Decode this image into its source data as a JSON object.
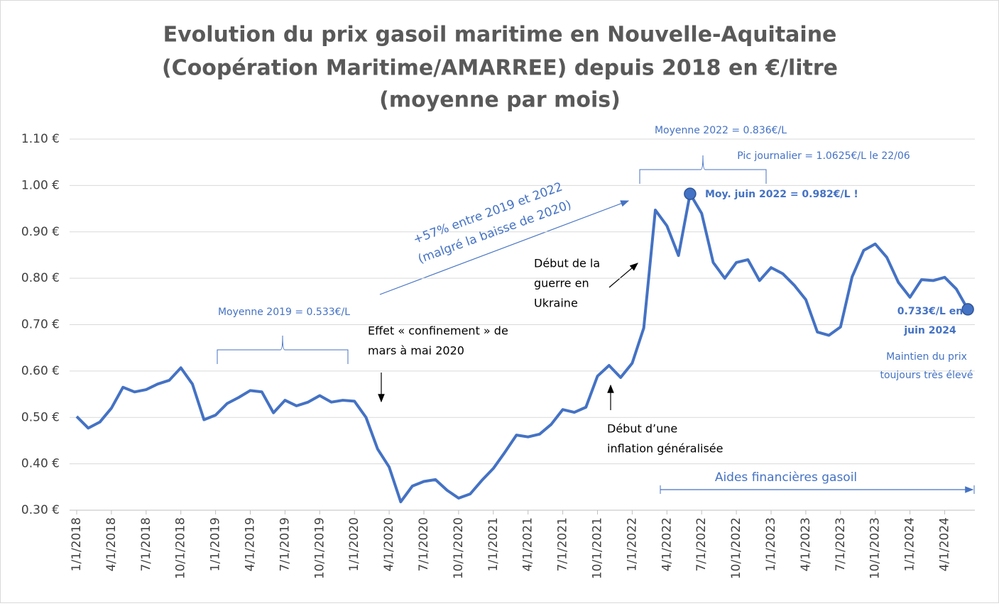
{
  "chart_data": {
    "type": "line",
    "title": "Evolution du prix gasoil maritime en Nouvelle-Aquitaine",
    "subtitle": [
      "(Coopération Maritime/AMARREE) depuis 2018 en €/litre",
      "(moyenne par mois)"
    ],
    "categories": [
      "1/1/2018",
      null,
      null,
      "4/1/2018",
      null,
      null,
      "7/1/2018",
      null,
      null,
      "10/1/2018",
      null,
      null,
      "1/1/2019",
      null,
      null,
      "4/1/2019",
      null,
      null,
      "7/1/2019",
      null,
      null,
      "10/1/2019",
      null,
      null,
      "1/1/2020",
      null,
      null,
      "4/1/2020",
      null,
      null,
      "7/1/2020",
      null,
      null,
      "10/1/2020",
      null,
      null,
      "1/1/2021",
      null,
      null,
      "4/1/2021",
      null,
      null,
      "7/1/2021",
      null,
      null,
      "10/1/2021",
      null,
      null,
      "1/1/2022",
      null,
      null,
      "4/1/2022",
      null,
      null,
      "7/1/2022",
      null,
      null,
      "10/1/2022",
      null,
      null,
      "1/1/2023",
      null,
      null,
      "4/1/2023",
      null,
      null,
      "7/1/2023",
      null,
      null,
      "10/1/2023",
      null,
      null,
      "1/1/2024",
      null,
      null,
      "4/1/2024",
      null,
      null
    ],
    "series": [
      {
        "color": "#4472c4",
        "values": [
          0.502,
          0.477,
          0.49,
          0.52,
          0.565,
          0.555,
          0.56,
          0.572,
          0.58,
          0.607,
          0.572,
          0.495,
          0.505,
          0.53,
          0.543,
          0.558,
          0.555,
          0.51,
          0.537,
          0.525,
          0.533,
          0.547,
          0.533,
          0.537,
          0.535,
          0.5,
          0.432,
          0.393,
          0.318,
          0.352,
          0.362,
          0.366,
          0.343,
          0.326,
          0.335,
          0.364,
          0.39,
          0.425,
          0.462,
          0.458,
          0.464,
          0.485,
          0.517,
          0.511,
          0.522,
          0.589,
          0.612,
          0.586,
          0.617,
          0.693,
          0.947,
          0.913,
          0.849,
          0.982,
          0.94,
          0.834,
          0.8,
          0.834,
          0.84,
          0.795,
          0.823,
          0.81,
          0.785,
          0.754,
          0.684,
          0.677,
          0.695,
          0.803,
          0.86,
          0.874,
          0.845,
          0.791,
          0.759,
          0.797,
          0.795,
          0.802,
          0.777,
          0.733
        ]
      }
    ],
    "highlight_points": [
      53,
      77
    ],
    "ylim": [
      0.3,
      1.1
    ],
    "yticks": [
      {
        "value": 0.3,
        "label": "0.30 €"
      },
      {
        "value": 0.4,
        "label": "0.40 €"
      },
      {
        "value": 0.5,
        "label": "0.50 €"
      },
      {
        "value": 0.6,
        "label": "0.60 €"
      },
      {
        "value": 0.7,
        "label": "0.70 €"
      },
      {
        "value": 0.8,
        "label": "0.80 €"
      },
      {
        "value": 0.9,
        "label": "0.90 €"
      },
      {
        "value": 1.0,
        "label": "1.00 €"
      },
      {
        "value": 1.1,
        "label": "1.10 €"
      }
    ],
    "grid": true,
    "annotations": [
      [
        "Moyenne 2022 = 0.836€/L"
      ],
      [
        "Pic journalier = 1.0625€/L le 22/06"
      ],
      [
        "Moy. juin 2022 = 0.982€/L !"
      ],
      [
        "+57% entre 2019 et 2022",
        "(malgré la baisse de 2020)"
      ],
      [
        "Début de la",
        "guerre en",
        "Ukraine"
      ],
      [
        "Moyenne 2019 = 0.533€/L"
      ],
      [
        "Effet « confinement » de",
        "mars à mai 2020"
      ],
      [
        "0.733€/L en",
        "juin 2024"
      ],
      [
        "Maintien du prix",
        "toujours très élevé"
      ],
      [
        "Début d’une",
        "inflation généralisée"
      ],
      [
        "Aides financières gasoil"
      ]
    ]
  }
}
